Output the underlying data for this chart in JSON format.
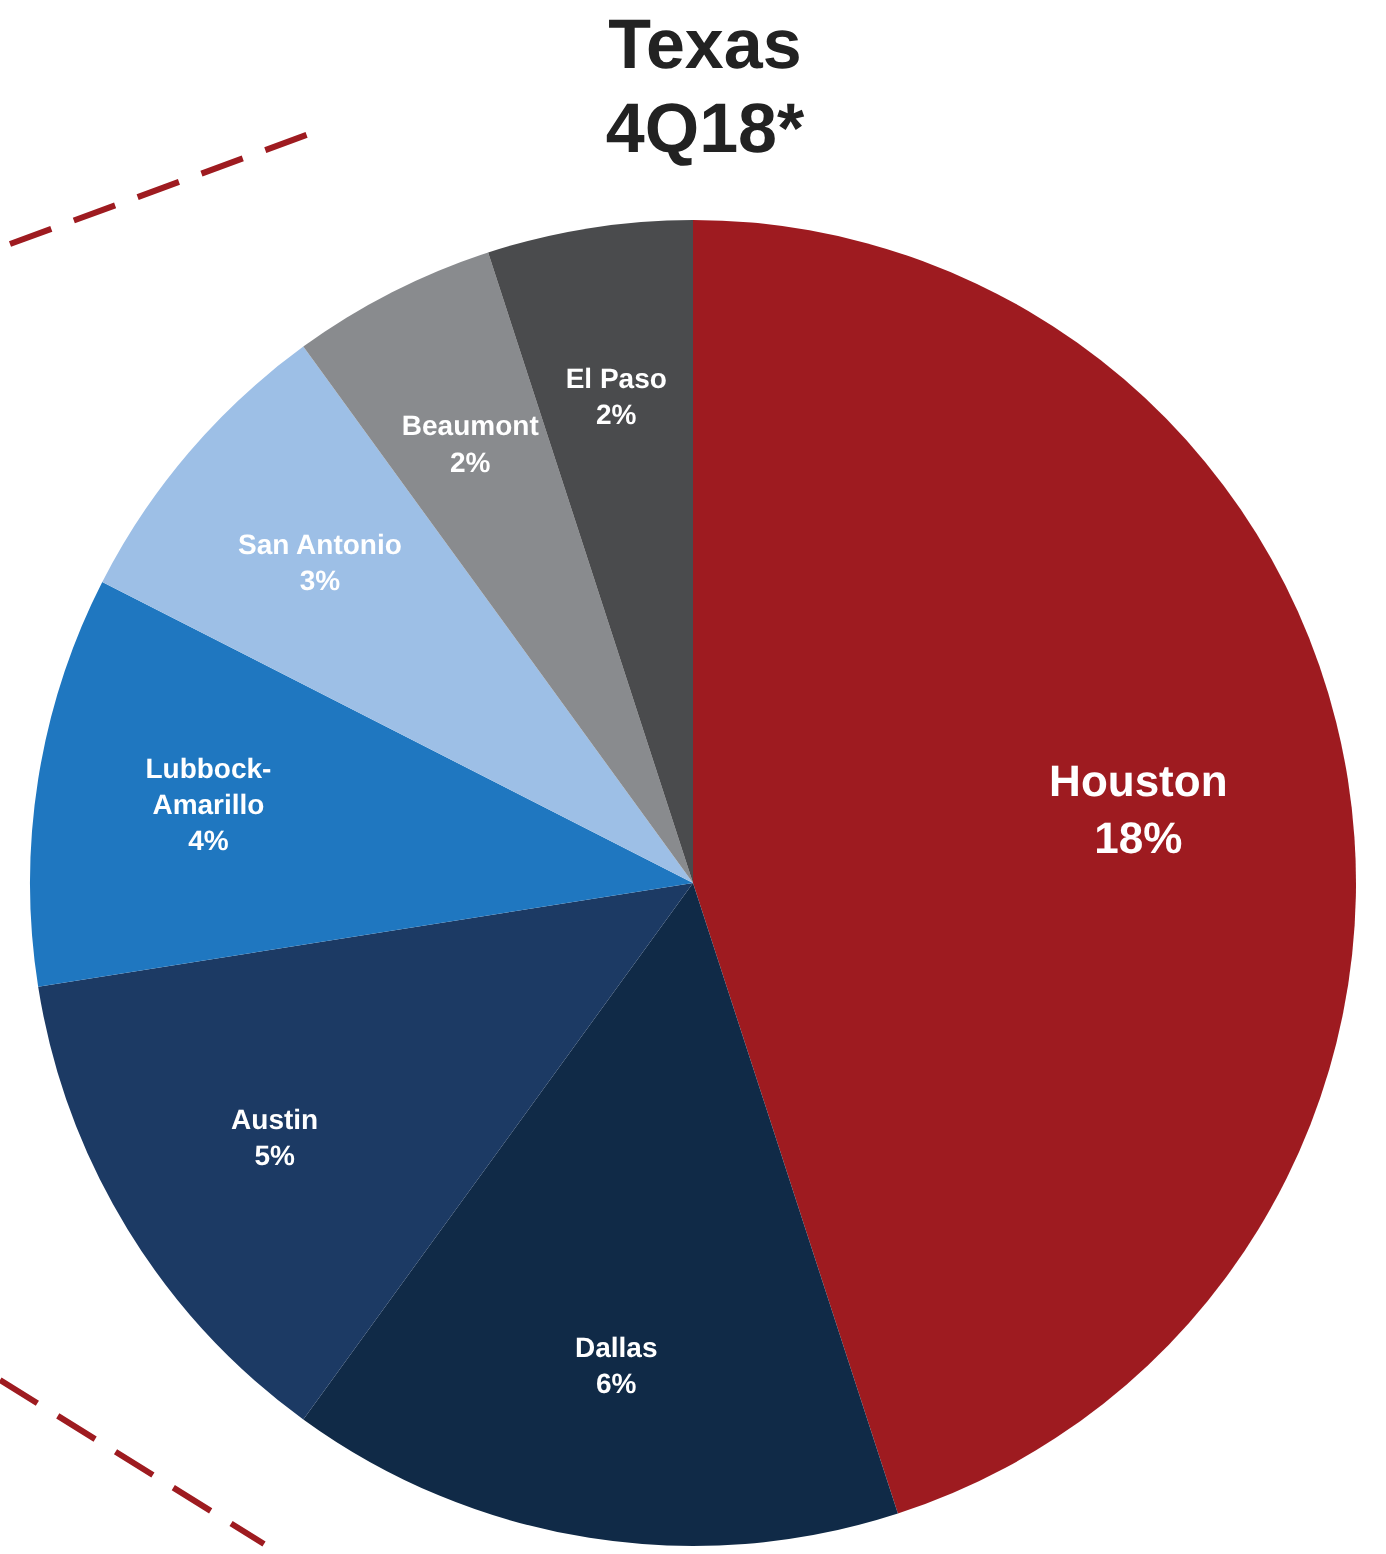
{
  "chart_data": {
    "type": "pie",
    "title": "Texas",
    "subtitle": "4Q18*",
    "categories": [
      "Houston",
      "Dallas",
      "Austin",
      "Lubbock-Amarillo",
      "San Antonio",
      "Beaumont",
      "El Paso"
    ],
    "values": [
      18,
      6,
      5,
      4,
      3,
      2,
      2
    ],
    "value_labels": [
      "18%",
      "6%",
      "5%",
      "4%",
      "3%",
      "2%",
      "2%"
    ],
    "colors": [
      "#9e1b20",
      "#102a47",
      "#1c3a64",
      "#1f77c0",
      "#9dbfe6",
      "#898b8e",
      "#4a4b4d"
    ],
    "legend": false
  }
}
